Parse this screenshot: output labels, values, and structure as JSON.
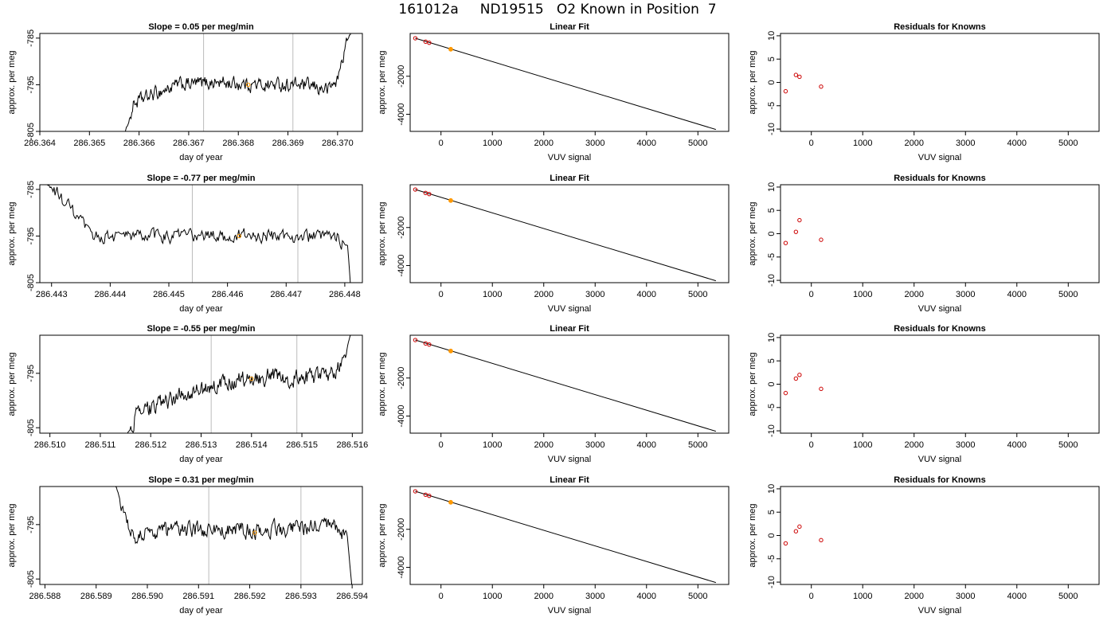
{
  "page": {
    "title": "161012a     ND19515   O2 Known in Position  7"
  },
  "chart_data": [
    {
      "type": "line",
      "panel": "timeseries",
      "row": 0,
      "title": "Slope =  0.05  per meg/min",
      "xlabel": "day of year",
      "ylabel": "approx. per meg",
      "xlim": [
        286.364,
        286.3705
      ],
      "ylim": [
        -805,
        -784
      ],
      "xticks": [
        "286.364",
        "286.365",
        "286.366",
        "286.367",
        "286.368",
        "286.369",
        "286.370"
      ],
      "yticks": [
        "-805",
        "-795",
        "-785"
      ],
      "vlines": [
        286.3673,
        286.3691
      ],
      "marker": [
        286.3682,
        -795
      ],
      "shape": [
        [
          286.3657,
          -806
        ],
        [
          286.3659,
          -799
        ],
        [
          286.3663,
          -797
        ],
        [
          286.3668,
          -795
        ],
        [
          286.3675,
          -794.5
        ],
        [
          286.3684,
          -795
        ],
        [
          286.3692,
          -795
        ],
        [
          286.3698,
          -796
        ],
        [
          286.37,
          -794
        ],
        [
          286.37015,
          -787
        ],
        [
          286.3703,
          -783
        ]
      ]
    },
    {
      "type": "line",
      "panel": "fit",
      "row": 0,
      "title": "Linear Fit",
      "xlabel": "VUV signal",
      "ylabel": "approx. per meg",
      "xlim": [
        -600,
        5600
      ],
      "ylim": [
        -4900,
        250
      ],
      "xticks": [
        "0",
        "1000",
        "2000",
        "3000",
        "4000",
        "5000"
      ],
      "yticks": [
        "-4000",
        "-2000"
      ],
      "line": [
        [
          -500,
          0
        ],
        [
          5350,
          -4800
        ]
      ],
      "points": [
        [
          -500,
          -2
        ],
        [
          -300,
          -182
        ],
        [
          -230,
          -238
        ]
      ],
      "highlight": [
        190,
        -580
      ]
    },
    {
      "type": "scatter",
      "panel": "residuals",
      "row": 0,
      "title": "Residuals for Knowns",
      "xlabel": "VUV signal",
      "ylabel": "approx. per meg",
      "xlim": [
        -600,
        5600
      ],
      "ylim": [
        -10.5,
        10.5
      ],
      "xticks": [
        "0",
        "1000",
        "2000",
        "3000",
        "4000",
        "5000"
      ],
      "yticks": [
        "-10",
        "-5",
        "0",
        "5",
        "10"
      ],
      "points": [
        [
          -500,
          -1.9
        ],
        [
          -300,
          1.6
        ],
        [
          -230,
          1.2
        ],
        [
          190,
          -0.9
        ]
      ]
    },
    {
      "type": "line",
      "panel": "timeseries",
      "row": 1,
      "title": "Slope =  -0.77  per meg/min",
      "xlabel": "day of year",
      "ylabel": "approx. per meg",
      "xlim": [
        286.4428,
        286.4483
      ],
      "ylim": [
        -805,
        -784
      ],
      "xticks": [
        "286.443",
        "286.444",
        "286.445",
        "286.446",
        "286.447",
        "286.448"
      ],
      "yticks": [
        "-805",
        "-795",
        "-785"
      ],
      "vlines": [
        286.4454,
        286.4472
      ],
      "marker": [
        286.4462,
        -795
      ],
      "shape": [
        [
          286.44285,
          -783
        ],
        [
          286.4431,
          -786
        ],
        [
          286.4435,
          -792
        ],
        [
          286.44365,
          -795
        ],
        [
          286.4443,
          -795
        ],
        [
          286.4452,
          -795
        ],
        [
          286.4462,
          -795
        ],
        [
          286.4472,
          -795
        ],
        [
          286.4479,
          -795.5
        ],
        [
          286.44805,
          -797
        ],
        [
          286.4481,
          -806
        ]
      ]
    },
    {
      "type": "line",
      "panel": "fit",
      "row": 1,
      "title": "Linear Fit",
      "xlabel": "VUV signal",
      "ylabel": "approx. per meg",
      "xlim": [
        -600,
        5600
      ],
      "ylim": [
        -4900,
        250
      ],
      "xticks": [
        "0",
        "1000",
        "2000",
        "3000",
        "4000",
        "5000"
      ],
      "yticks": [
        "-4000",
        "-2000"
      ],
      "line": [
        [
          -500,
          0
        ],
        [
          5350,
          -4800
        ]
      ],
      "points": [
        [
          -500,
          -2
        ],
        [
          -300,
          -182
        ],
        [
          -230,
          -238
        ]
      ],
      "highlight": [
        190,
        -580
      ]
    },
    {
      "type": "scatter",
      "panel": "residuals",
      "row": 1,
      "title": "Residuals for Knowns",
      "xlabel": "VUV signal",
      "ylabel": "approx. per meg",
      "xlim": [
        -600,
        5600
      ],
      "ylim": [
        -10.5,
        10.5
      ],
      "xticks": [
        "0",
        "1000",
        "2000",
        "3000",
        "4000",
        "5000"
      ],
      "yticks": [
        "-10",
        "-5",
        "0",
        "5",
        "10"
      ],
      "points": [
        [
          -500,
          -2.0
        ],
        [
          -300,
          0.4
        ],
        [
          -230,
          2.9
        ],
        [
          190,
          -1.3
        ]
      ]
    },
    {
      "type": "line",
      "panel": "timeseries",
      "row": 2,
      "title": "Slope =  -0.55  per meg/min",
      "xlabel": "day of year",
      "ylabel": "approx. per meg",
      "xlim": [
        286.5098,
        286.5162
      ],
      "ylim": [
        -806,
        -788
      ],
      "xticks": [
        "286.510",
        "286.511",
        "286.512",
        "286.513",
        "286.514",
        "286.515",
        "286.516"
      ],
      "yticks": [
        "-805",
        "-795"
      ],
      "vlines": [
        286.5132,
        286.5149
      ],
      "marker": [
        286.514,
        -796
      ],
      "shape": [
        [
          286.5115,
          -807
        ],
        [
          286.5117,
          -803
        ],
        [
          286.5121,
          -801
        ],
        [
          286.5126,
          -799
        ],
        [
          286.5132,
          -797.5
        ],
        [
          286.5138,
          -796
        ],
        [
          286.5145,
          -795.5
        ],
        [
          286.515,
          -796
        ],
        [
          286.5156,
          -795
        ],
        [
          286.51585,
          -792
        ],
        [
          286.516,
          -787
        ]
      ]
    },
    {
      "type": "line",
      "panel": "fit",
      "row": 2,
      "title": "Linear Fit",
      "xlabel": "VUV signal",
      "ylabel": "approx. per meg",
      "xlim": [
        -600,
        5600
      ],
      "ylim": [
        -4900,
        250
      ],
      "xticks": [
        "0",
        "1000",
        "2000",
        "3000",
        "4000",
        "5000"
      ],
      "yticks": [
        "-4000",
        "-2000"
      ],
      "line": [
        [
          -500,
          0
        ],
        [
          5350,
          -4800
        ]
      ],
      "points": [
        [
          -500,
          -2
        ],
        [
          -300,
          -182
        ],
        [
          -230,
          -238
        ]
      ],
      "highlight": [
        190,
        -580
      ]
    },
    {
      "type": "scatter",
      "panel": "residuals",
      "row": 2,
      "title": "Residuals for Knowns",
      "xlabel": "VUV signal",
      "ylabel": "approx. per meg",
      "xlim": [
        -600,
        5600
      ],
      "ylim": [
        -10.5,
        10.5
      ],
      "xticks": [
        "0",
        "1000",
        "2000",
        "3000",
        "4000",
        "5000"
      ],
      "yticks": [
        "-10",
        "-5",
        "0",
        "5",
        "10"
      ],
      "points": [
        [
          -500,
          -1.9
        ],
        [
          -300,
          1.2
        ],
        [
          -230,
          2.0
        ],
        [
          190,
          -1.0
        ]
      ]
    },
    {
      "type": "line",
      "panel": "timeseries",
      "row": 3,
      "title": "Slope =  0.31  per meg/min",
      "xlabel": "day of year",
      "ylabel": "approx. per meg",
      "xlim": [
        286.5879,
        286.5942
      ],
      "ylim": [
        -806,
        -788
      ],
      "xticks": [
        "286.588",
        "286.589",
        "286.590",
        "286.591",
        "286.592",
        "286.593",
        "286.594"
      ],
      "yticks": [
        "-805",
        "-795"
      ],
      "vlines": [
        286.5912,
        286.593
      ],
      "marker": [
        286.5921,
        -796.5
      ],
      "shape": [
        [
          286.58935,
          -787
        ],
        [
          286.5895,
          -791
        ],
        [
          286.5897,
          -797
        ],
        [
          286.5903,
          -796
        ],
        [
          286.5912,
          -796
        ],
        [
          286.5921,
          -796
        ],
        [
          286.593,
          -795.5
        ],
        [
          286.5937,
          -795.5
        ],
        [
          286.5939,
          -797
        ],
        [
          286.594,
          -807
        ]
      ]
    },
    {
      "type": "line",
      "panel": "fit",
      "row": 3,
      "title": "Linear Fit",
      "xlabel": "VUV signal",
      "ylabel": "approx. per meg",
      "xlim": [
        -600,
        5600
      ],
      "ylim": [
        -4900,
        250
      ],
      "xticks": [
        "0",
        "1000",
        "2000",
        "3000",
        "4000",
        "5000"
      ],
      "yticks": [
        "-4000",
        "-2000"
      ],
      "line": [
        [
          -500,
          0
        ],
        [
          5350,
          -4800
        ]
      ],
      "points": [
        [
          -500,
          -2
        ],
        [
          -300,
          -182
        ],
        [
          -230,
          -238
        ]
      ],
      "highlight": [
        190,
        -580
      ]
    },
    {
      "type": "scatter",
      "panel": "residuals",
      "row": 3,
      "title": "Residuals for Knowns",
      "xlabel": "VUV signal",
      "ylabel": "approx. per meg",
      "xlim": [
        -600,
        5600
      ],
      "ylim": [
        -10.5,
        10.5
      ],
      "xticks": [
        "0",
        "1000",
        "2000",
        "3000",
        "4000",
        "5000"
      ],
      "yticks": [
        "-10",
        "-5",
        "0",
        "5",
        "10"
      ],
      "points": [
        [
          -500,
          -1.7
        ],
        [
          -300,
          0.9
        ],
        [
          -230,
          1.9
        ],
        [
          190,
          -1.0
        ]
      ]
    }
  ],
  "colors": {
    "line": "#000000",
    "marker": "#ff9900",
    "residual": "#cc0000",
    "vline": "#bbbbbb",
    "frame": "#000000"
  }
}
